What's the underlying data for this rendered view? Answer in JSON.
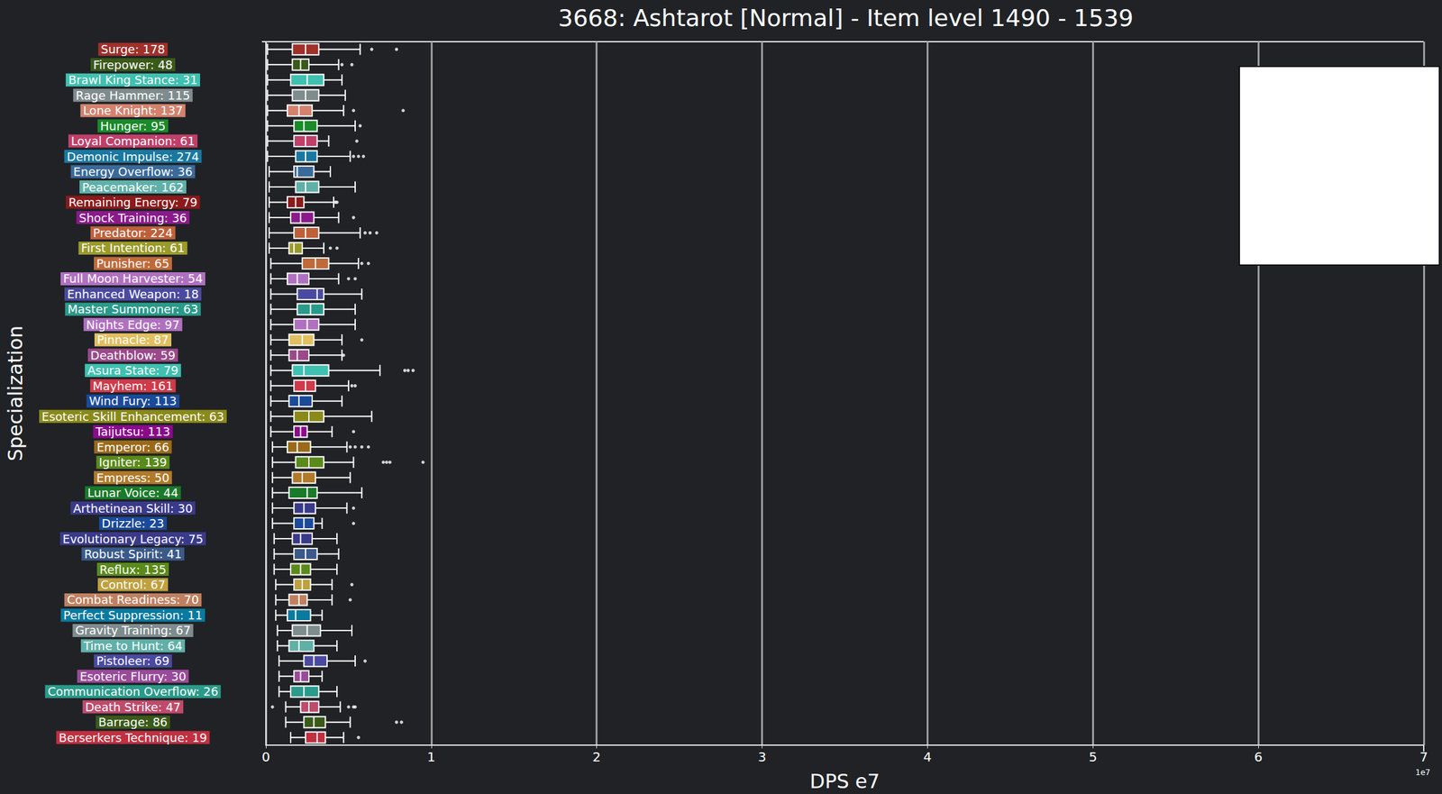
{
  "chart_data": {
    "type": "boxplot",
    "orientation": "horizontal",
    "title": "3668: Ashtarot [Normal] - Item level 1490 - 1539",
    "x_label": "DPS e7",
    "y_label": "Specialization",
    "annotations": [
      "1e7"
    ],
    "xlim": [
      0,
      7
    ],
    "xticks": [
      0,
      1,
      2,
      3,
      4,
      5,
      6,
      7
    ],
    "grid": true,
    "categories": [
      "Surge: 178",
      "Firepower: 48",
      "Brawl King Stance: 31",
      "Rage Hammer: 115",
      "Lone Knight: 137",
      "Hunger: 95",
      "Loyal Companion: 61",
      "Demonic Impulse: 274",
      "Energy Overflow: 36",
      "Peacemaker: 162",
      "Remaining Energy: 79",
      "Shock Training: 36",
      "Predator: 224",
      "First Intention: 61",
      "Punisher: 65",
      "Full Moon Harvester: 54",
      "Enhanced Weapon: 18",
      "Master Summoner: 63",
      "Nights Edge: 97",
      "Pinnacle: 87",
      "Deathblow: 59",
      "Asura State: 79",
      "Mayhem: 161",
      "Wind Fury: 113",
      "Esoteric Skill Enhancement: 63",
      "Taijutsu: 113",
      "Emperor: 66",
      "Igniter: 139",
      "Empress: 50",
      "Lunar Voice: 44",
      "Arthetinean Skill: 30",
      "Drizzle: 23",
      "Evolutionary Legacy: 75",
      "Robust Spirit: 41",
      "Reflux: 135",
      "Control: 67",
      "Combat Readiness: 70",
      "Perfect Suppression: 11",
      "Gravity Training: 67",
      "Time to Hunt: 64",
      "Pistoleer: 69",
      "Esoteric Flurry: 30",
      "Communication Overflow: 26",
      "Death Strike: 47",
      "Barrage: 86",
      "Berserkers Technique: 19"
    ],
    "colors": [
      "#a0302a",
      "#3a5a1a",
      "#40c0b0",
      "#7f8c8d",
      "#d4826e",
      "#1a8a2a",
      "#c0406a",
      "#1a78a0",
      "#3a6a9a",
      "#60b0a8",
      "#8b1a1a",
      "#8a1a8a",
      "#c0603a",
      "#9a9a2a",
      "#c06a3a",
      "#b070c0",
      "#4a4aa0",
      "#2a9a8a",
      "#b070c0",
      "#e0c060",
      "#9a4a8a",
      "#40c0b0",
      "#d03a4a",
      "#1a4a9a",
      "#8a8a1a",
      "#8a0a8a",
      "#9a6a1a",
      "#5a8a1a",
      "#b07a2a",
      "#1a7a2a",
      "#3a3a8a",
      "#1a4a9a",
      "#3a3a8a",
      "#3a5a8a",
      "#5a8a1a",
      "#c0a040",
      "#c08060",
      "#0a7aa0",
      "#7f8c8d",
      "#60b0a8",
      "#4a4aa0",
      "#9a4a9a",
      "#2a9a8a",
      "#c04a6a",
      "#3a5a1a",
      "#c03040"
    ],
    "boxes": [
      [
        0.01,
        0.16,
        0.24,
        0.32,
        0.57
      ],
      [
        0.01,
        0.16,
        0.21,
        0.26,
        0.44
      ],
      [
        0.01,
        0.15,
        0.25,
        0.35,
        0.46
      ],
      [
        0.01,
        0.16,
        0.24,
        0.32,
        0.48
      ],
      [
        0.01,
        0.13,
        0.2,
        0.28,
        0.47
      ],
      [
        0.01,
        0.17,
        0.23,
        0.31,
        0.54
      ],
      [
        0.01,
        0.17,
        0.24,
        0.31,
        0.38
      ],
      [
        0.01,
        0.18,
        0.24,
        0.31,
        0.51
      ],
      [
        0.02,
        0.17,
        0.19,
        0.29,
        0.39
      ],
      [
        0.02,
        0.18,
        0.24,
        0.32,
        0.54
      ],
      [
        0.02,
        0.13,
        0.18,
        0.23,
        0.41
      ],
      [
        0.02,
        0.15,
        0.21,
        0.29,
        0.44
      ],
      [
        0.02,
        0.17,
        0.24,
        0.32,
        0.57
      ],
      [
        0.02,
        0.14,
        0.17,
        0.22,
        0.35
      ],
      [
        0.03,
        0.22,
        0.3,
        0.38,
        0.56
      ],
      [
        0.03,
        0.13,
        0.19,
        0.26,
        0.44
      ],
      [
        0.03,
        0.19,
        0.31,
        0.35,
        0.58
      ],
      [
        0.03,
        0.19,
        0.27,
        0.35,
        0.54
      ],
      [
        0.03,
        0.17,
        0.25,
        0.32,
        0.54
      ],
      [
        0.03,
        0.14,
        0.22,
        0.29,
        0.46
      ],
      [
        0.03,
        0.14,
        0.19,
        0.26,
        0.46
      ],
      [
        0.03,
        0.16,
        0.23,
        0.38,
        0.69
      ],
      [
        0.03,
        0.17,
        0.24,
        0.3,
        0.5
      ],
      [
        0.03,
        0.14,
        0.2,
        0.28,
        0.46
      ],
      [
        0.03,
        0.17,
        0.26,
        0.35,
        0.64
      ],
      [
        0.03,
        0.17,
        0.21,
        0.25,
        0.4
      ],
      [
        0.04,
        0.13,
        0.19,
        0.27,
        0.49
      ],
      [
        0.04,
        0.18,
        0.26,
        0.35,
        0.53
      ],
      [
        0.04,
        0.16,
        0.22,
        0.3,
        0.51
      ],
      [
        0.04,
        0.14,
        0.25,
        0.31,
        0.58
      ],
      [
        0.04,
        0.17,
        0.23,
        0.3,
        0.49
      ],
      [
        0.04,
        0.17,
        0.23,
        0.29,
        0.34
      ],
      [
        0.05,
        0.16,
        0.21,
        0.28,
        0.43
      ],
      [
        0.05,
        0.17,
        0.24,
        0.31,
        0.44
      ],
      [
        0.05,
        0.15,
        0.21,
        0.27,
        0.43
      ],
      [
        0.06,
        0.17,
        0.22,
        0.27,
        0.4
      ],
      [
        0.06,
        0.14,
        0.2,
        0.25,
        0.4
      ],
      [
        0.06,
        0.13,
        0.18,
        0.27,
        0.34
      ],
      [
        0.07,
        0.16,
        0.25,
        0.33,
        0.52
      ],
      [
        0.07,
        0.14,
        0.2,
        0.29,
        0.43
      ],
      [
        0.08,
        0.23,
        0.29,
        0.37,
        0.54
      ],
      [
        0.08,
        0.17,
        0.21,
        0.26,
        0.34
      ],
      [
        0.08,
        0.15,
        0.23,
        0.32,
        0.43
      ],
      [
        0.12,
        0.21,
        0.26,
        0.32,
        0.45
      ],
      [
        0.12,
        0.23,
        0.29,
        0.36,
        0.51
      ],
      [
        0.15,
        0.24,
        0.31,
        0.36,
        0.47
      ]
    ],
    "outliers": [
      [
        0.64,
        0.79
      ],
      [
        0.46,
        0.52
      ],
      [],
      [],
      [
        0.53,
        0.83
      ],
      [
        0.57
      ],
      [
        0.55
      ],
      [
        0.53,
        0.56,
        0.59
      ],
      [],
      [],
      [
        0.42,
        0.43
      ],
      [
        0.53
      ],
      [
        0.6,
        0.63,
        0.67
      ],
      [
        0.39,
        0.43
      ],
      [
        0.58,
        0.62
      ],
      [
        0.5,
        0.54
      ],
      [],
      [],
      [],
      [
        0.58
      ],
      [
        0.47
      ],
      [
        0.84,
        0.86,
        0.89
      ],
      [
        0.52,
        0.54
      ],
      [],
      [],
      [
        0.53
      ],
      [
        0.51,
        0.54,
        0.58,
        0.62
      ],
      [
        0.71,
        0.73,
        0.75,
        0.95
      ],
      [],
      [],
      [
        0.53
      ],
      [
        0.53
      ],
      [],
      [],
      [],
      [
        0.52
      ],
      [
        0.51
      ],
      [],
      [],
      [],
      [
        0.6
      ],
      [],
      [],
      [
        0.04,
        0.5,
        0.53,
        0.54
      ],
      [
        0.79,
        0.82
      ],
      [
        0.56
      ]
    ]
  }
}
